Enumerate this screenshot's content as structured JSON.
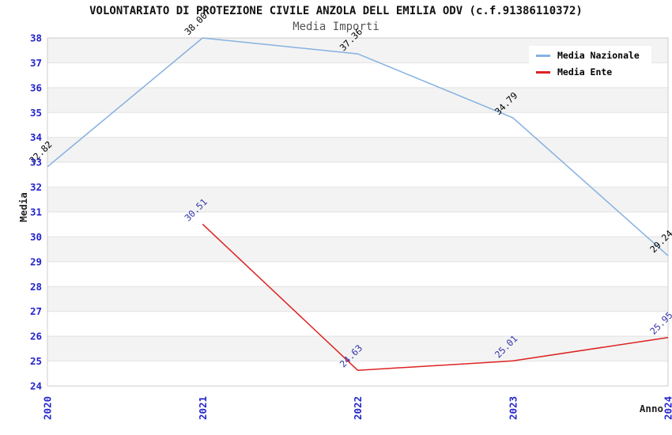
{
  "title": "VOLONTARIATO DI PROTEZIONE CIVILE ANZOLA DELL EMILIA ODV (c.f.91386110372)",
  "subtitle": "Media Importi",
  "chart_data": {
    "type": "line",
    "title": "VOLONTARIATO DI PROTEZIONE CIVILE ANZOLA DELL EMILIA ODV (c.f.91386110372)",
    "subtitle": "Media Importi",
    "xlabel": "Anno",
    "ylabel": "Media",
    "x": [
      2020,
      2021,
      2022,
      2023,
      2024
    ],
    "ylim": [
      24,
      38
    ],
    "ytick_step": 1,
    "grid": "alternating-horizontal-bands",
    "legend_position": "top-right",
    "series": [
      {
        "name": "Media Nazionale",
        "color": "#85b1e0",
        "label_color": "#000000",
        "values": [
          32.82,
          38.0,
          37.36,
          34.79,
          29.24
        ]
      },
      {
        "name": "Media Ente",
        "color": "#dd2222",
        "label_color": "#3333aa",
        "values": [
          null,
          30.51,
          24.63,
          25.01,
          25.95
        ]
      }
    ],
    "colors": {
      "axis_tick_label": "#2424cc",
      "band": "#f3f3f3",
      "grid_line": "#e2e2e2",
      "plot_border": "#cccccc",
      "title": "#111111",
      "subtitle": "#555555",
      "axis_title": "#222222",
      "legend_bg": "#ffffff"
    }
  }
}
